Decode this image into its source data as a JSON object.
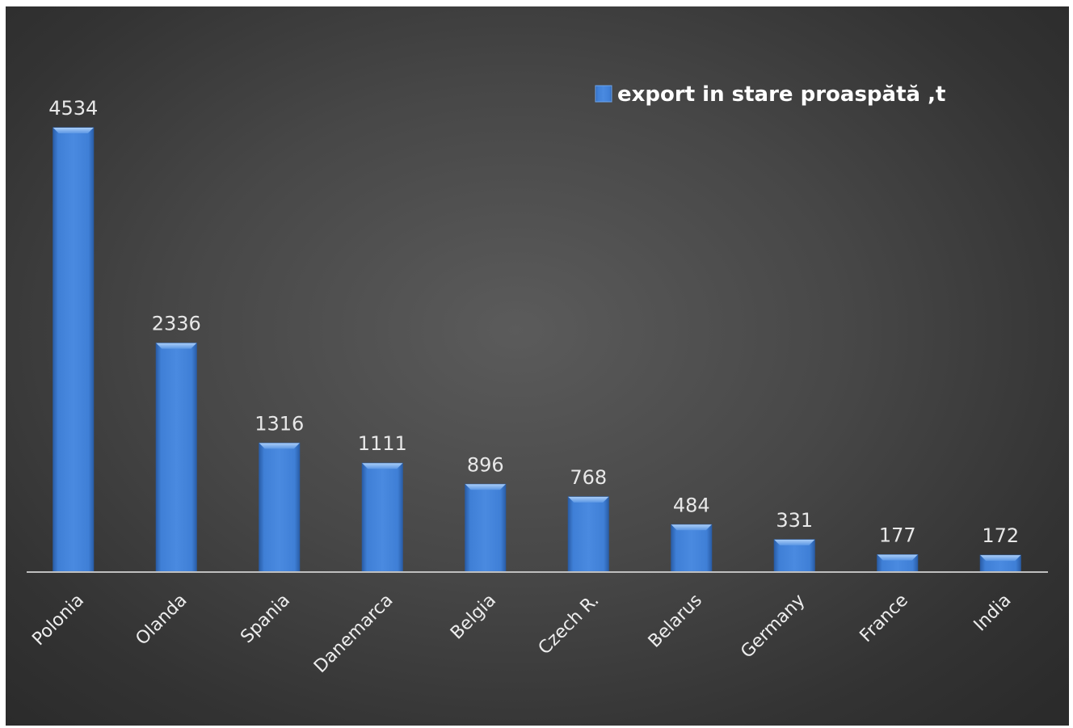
{
  "chart_data": {
    "type": "bar",
    "categories": [
      "Polonia",
      "Olanda",
      "Spania",
      "Danemarca",
      "Belgia",
      "Czech R.",
      "Belarus",
      "Germany",
      "France",
      "India"
    ],
    "series": [
      {
        "name": "export in stare proaspătă ,t",
        "values": [
          4534,
          2336,
          1316,
          1111,
          896,
          768,
          484,
          331,
          177,
          172
        ]
      }
    ],
    "data_labels": true,
    "legend_position": "top-right",
    "grid": false,
    "ylim": [
      0,
      4534
    ],
    "bar_color": "#3f7fd6",
    "bar_color_dark": "#2a5ea8",
    "bar_color_light": "#7fb0ee",
    "background_color": "#444444",
    "axis_color": "#bfbfbf"
  }
}
